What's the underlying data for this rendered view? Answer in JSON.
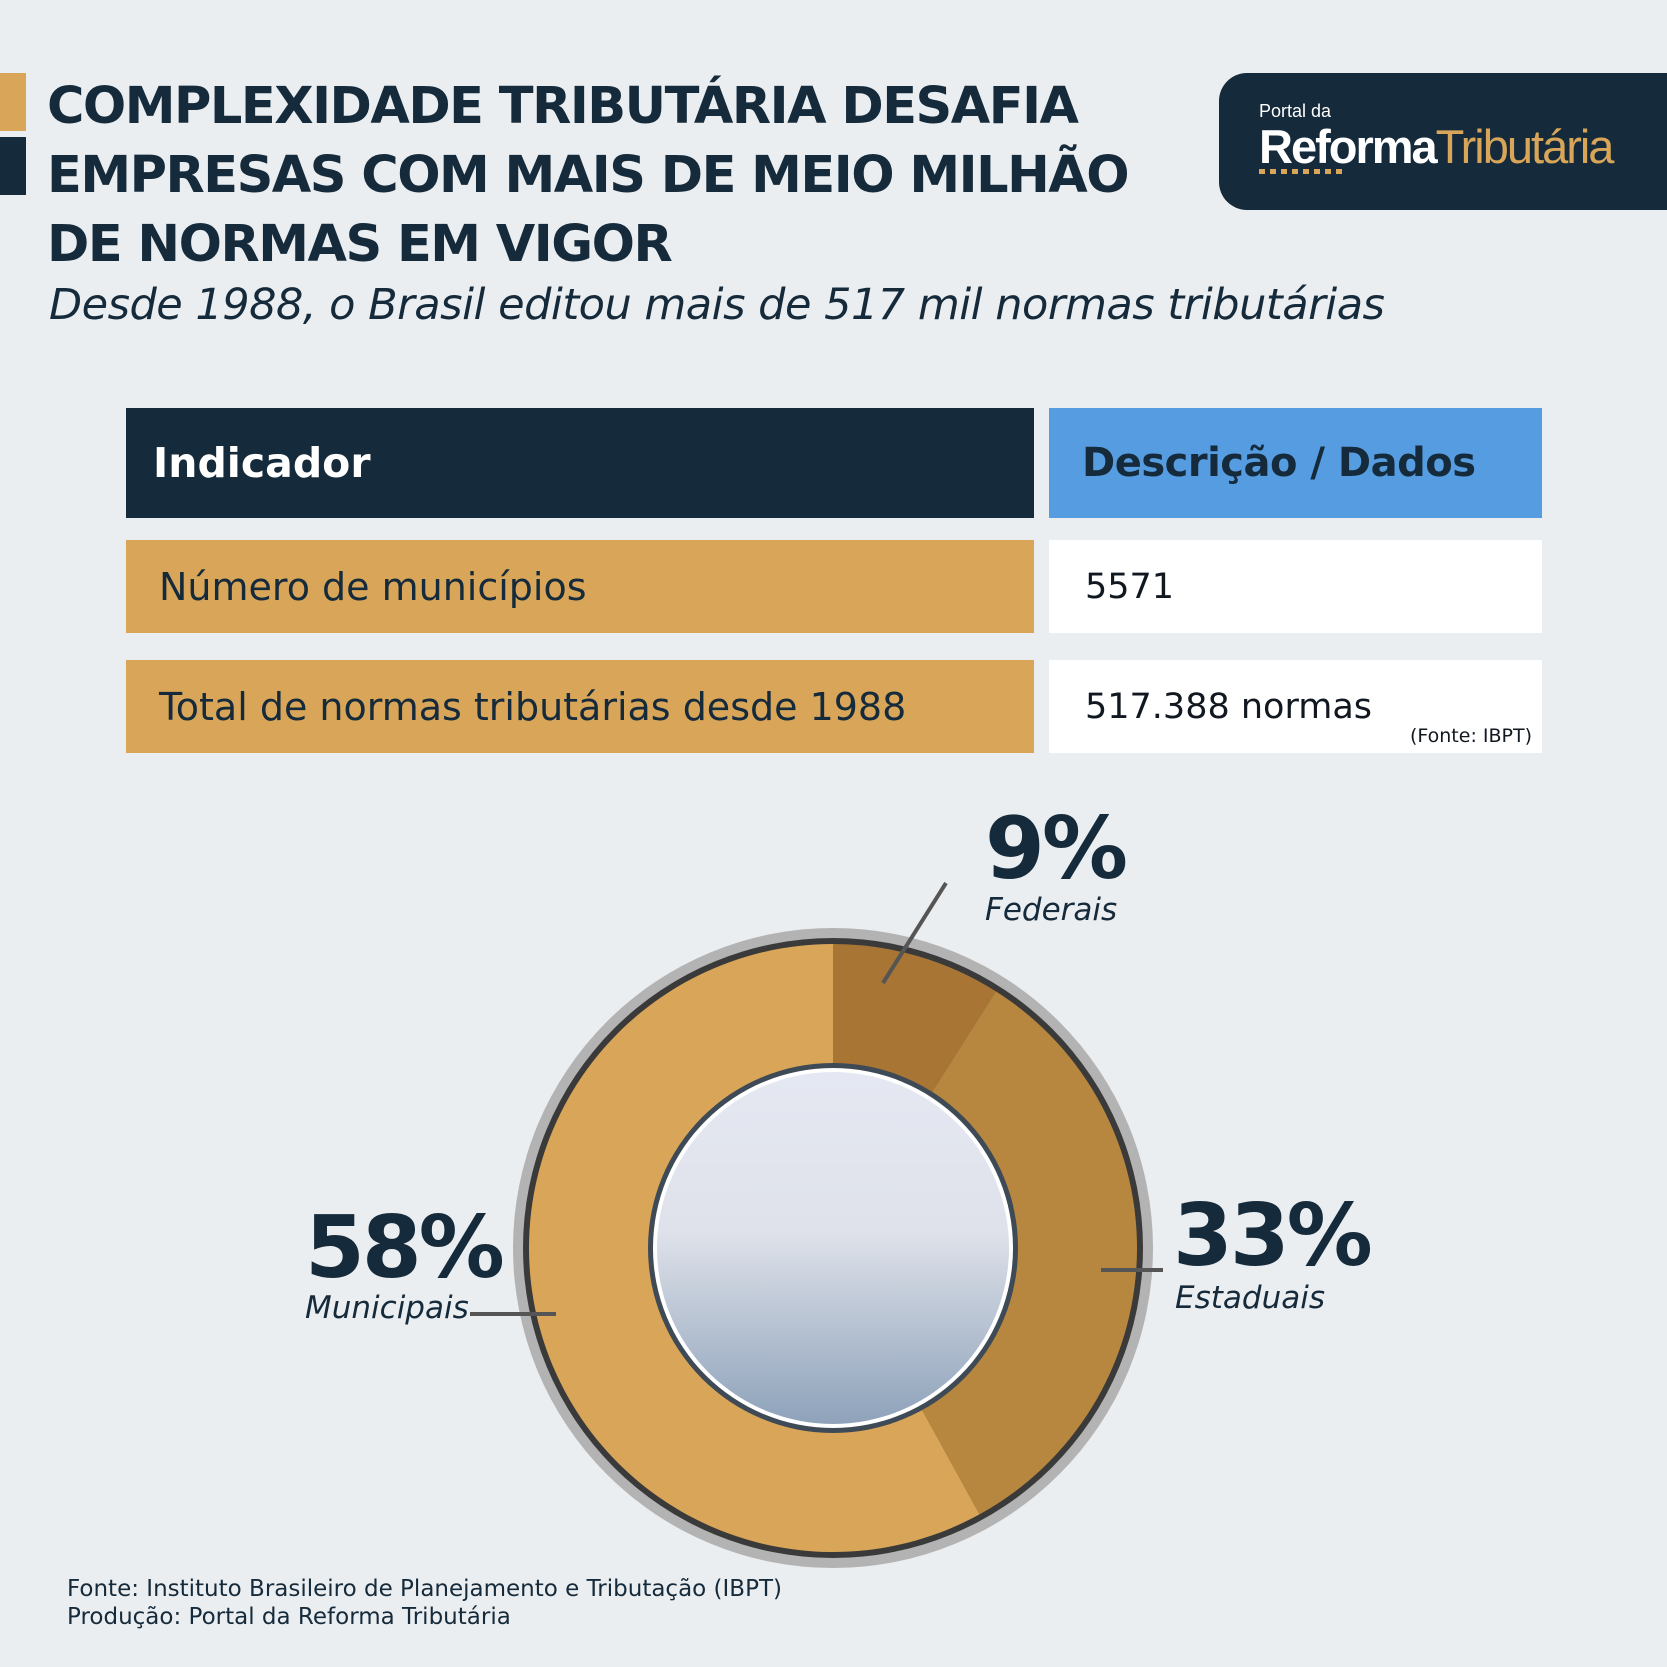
{
  "header": {
    "title": "COMPLEXIDADE TRIBUTÁRIA DESAFIA EMPRESAS COM MAIS DE MEIO MILHÃO DE NORMAS EM VIGOR",
    "subtitle": "Desde 1988, o Brasil editou mais de 517 mil normas tributárias"
  },
  "logo": {
    "small": "Portal da",
    "word1": "Reforma",
    "word2": "Tributária"
  },
  "table": {
    "headers": [
      "Indicador",
      "Descrição / Dados"
    ],
    "rows": [
      {
        "label": "Número de municípios",
        "value": "5571",
        "note": ""
      },
      {
        "label": "Total de normas tributárias desde 1988",
        "value": "517.388 normas",
        "note": "(Fonte: IBPT)"
      }
    ]
  },
  "chart_data": {
    "type": "pie",
    "variant": "donut",
    "categories": [
      "Federais",
      "Estaduais",
      "Municipais"
    ],
    "values": [
      9,
      33,
      58
    ],
    "labels": [
      "9%",
      "33%",
      "58%"
    ],
    "unit": "%",
    "colors": [
      "#a87535",
      "#b8873f",
      "#d9a659"
    ]
  },
  "footer": {
    "source": "Fonte: Instituto Brasileiro de Planejamento e Tributação (IBPT)",
    "production": "Produção: Portal da Reforma Tributária"
  }
}
